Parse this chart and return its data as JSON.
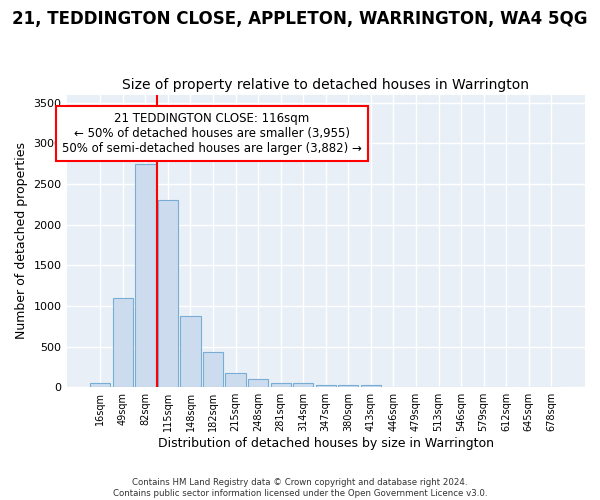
{
  "title": "21, TEDDINGTON CLOSE, APPLETON, WARRINGTON, WA4 5QG",
  "subtitle": "Size of property relative to detached houses in Warrington",
  "xlabel": "Distribution of detached houses by size in Warrington",
  "ylabel": "Number of detached properties",
  "bar_labels": [
    "16sqm",
    "49sqm",
    "82sqm",
    "115sqm",
    "148sqm",
    "182sqm",
    "215sqm",
    "248sqm",
    "281sqm",
    "314sqm",
    "347sqm",
    "380sqm",
    "413sqm",
    "446sqm",
    "479sqm",
    "513sqm",
    "546sqm",
    "579sqm",
    "612sqm",
    "645sqm",
    "678sqm"
  ],
  "bar_values": [
    50,
    1100,
    2750,
    2300,
    880,
    430,
    180,
    100,
    55,
    50,
    30,
    25,
    30,
    5,
    0,
    0,
    0,
    0,
    0,
    0,
    0
  ],
  "bar_color": "#ccdcee",
  "bar_edge_color": "#7aadd4",
  "ylim": [
    0,
    3600
  ],
  "yticks": [
    0,
    500,
    1000,
    1500,
    2000,
    2500,
    3000,
    3500
  ],
  "red_line_x": 3.0,
  "annotation_text": "21 TEDDINGTON CLOSE: 116sqm\n← 50% of detached houses are smaller (3,955)\n50% of semi-detached houses are larger (3,882) →",
  "footer": "Contains HM Land Registry data © Crown copyright and database right 2024.\nContains public sector information licensed under the Open Government Licence v3.0.",
  "fig_bg_color": "#ffffff",
  "plot_bg_color": "#e8eff7",
  "grid_color": "#ffffff",
  "title_fontsize": 12,
  "subtitle_fontsize": 10,
  "ylabel_fontsize": 9,
  "xlabel_fontsize": 9
}
